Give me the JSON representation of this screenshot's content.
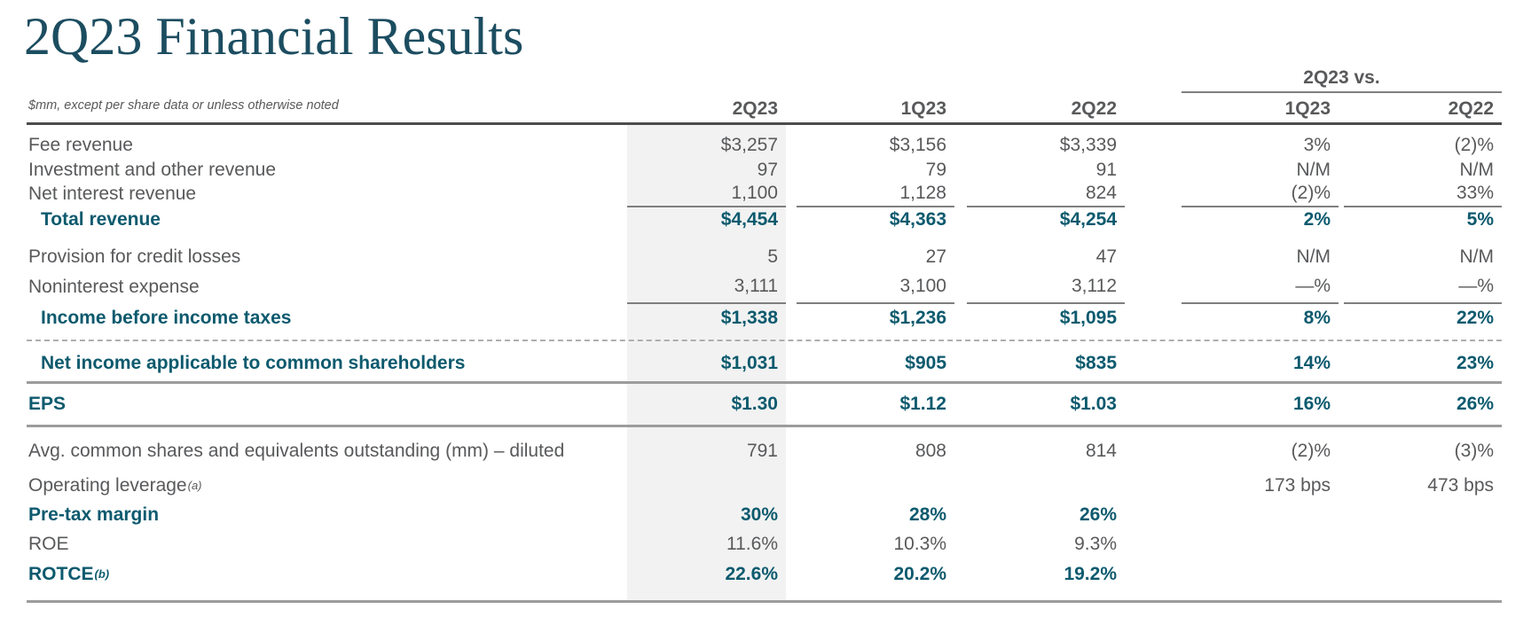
{
  "title": "2Q23 Financial Results",
  "note": "$mm, except per share data or unless otherwise noted",
  "header": {
    "vs_label": "2Q23 vs.",
    "columns": [
      "2Q23",
      "1Q23",
      "2Q22",
      "1Q23",
      "2Q22"
    ]
  },
  "colors": {
    "title_teal": "#1c4d60",
    "accent_teal": "#0d5a6e",
    "text_gray": "#58595b",
    "column_shade": "#f2f2f2",
    "rule_dark": "#4c4c4c",
    "rule_gray": "#7f7f7f"
  },
  "rows": [
    {
      "label": "Fee revenue",
      "values": [
        "$3,257",
        "$3,156",
        "$3,339",
        "3%",
        "(2)%"
      ]
    },
    {
      "label": "Investment and other revenue",
      "values": [
        "97",
        "79",
        "91",
        "N/M",
        "N/M"
      ]
    },
    {
      "label": "Net interest revenue",
      "rule_below": true,
      "values": [
        "1,100",
        "1,128",
        "824",
        "(2)%",
        "33%"
      ]
    },
    {
      "label": "Total revenue",
      "bold": true,
      "indent": true,
      "values": [
        "$4,454",
        "$4,363",
        "$4,254",
        "2%",
        "5%"
      ]
    },
    {
      "label": "Provision for credit losses",
      "values": [
        "5",
        "27",
        "47",
        "N/M",
        "N/M"
      ]
    },
    {
      "label": "Noninterest expense",
      "rule_below": true,
      "values": [
        "3,111",
        "3,100",
        "3,112",
        "—%",
        "—%"
      ]
    },
    {
      "label": "Income before income taxes",
      "bold": true,
      "indent": true,
      "values": [
        "$1,338",
        "$1,236",
        "$1,095",
        "8%",
        "22%"
      ]
    },
    {
      "divider": "dashed"
    },
    {
      "label": "Net income applicable to common shareholders",
      "bold": true,
      "indent": true,
      "values": [
        "$1,031",
        "$905",
        "$835",
        "14%",
        "23%"
      ]
    },
    {
      "divider": "solid"
    },
    {
      "label": "EPS",
      "bold": true,
      "values": [
        "$1.30",
        "$1.12",
        "$1.03",
        "16%",
        "26%"
      ]
    },
    {
      "divider": "solid"
    },
    {
      "label": "Avg. common shares and equivalents outstanding (mm) – diluted",
      "values": [
        "791",
        "808",
        "814",
        "(2)%",
        "(3)%"
      ]
    },
    {
      "label": "Operating leverage",
      "sup": "(a)",
      "values": [
        "",
        "",
        "",
        "173 bps",
        "473 bps"
      ]
    },
    {
      "label": "Pre-tax margin",
      "bold": true,
      "values": [
        "30%",
        "28%",
        "26%",
        "",
        ""
      ]
    },
    {
      "label": "ROE",
      "values": [
        "11.6%",
        "10.3%",
        "9.3%",
        "",
        ""
      ]
    },
    {
      "label": "ROTCE",
      "sup": "(b)",
      "bold": true,
      "values": [
        "22.6%",
        "20.2%",
        "19.2%",
        "",
        ""
      ]
    },
    {
      "divider": "solid"
    }
  ]
}
